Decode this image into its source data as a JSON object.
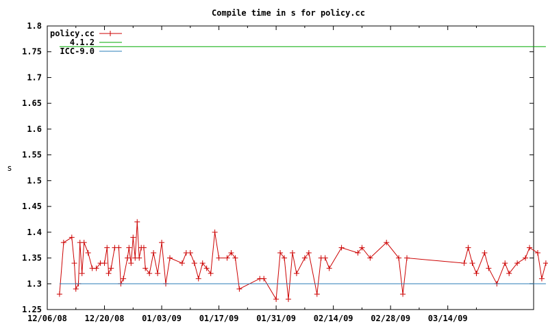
{
  "chart_data": {
    "type": "line",
    "title": "Compile time in s for policy.cc",
    "xlabel": "",
    "ylabel": "s",
    "ylim": [
      1.25,
      1.8
    ],
    "yticks": [
      "1.25",
      "1.3",
      "1.35",
      "1.4",
      "1.45",
      "1.5",
      "1.55",
      "1.6",
      "1.65",
      "1.7",
      "1.75",
      "1.8"
    ],
    "xlim": [
      "2008-12-06",
      "2009-04-04"
    ],
    "xticks": [
      {
        "date": "2008-12-06",
        "label": "12/06/08"
      },
      {
        "date": "2008-12-20",
        "label": "12/20/08"
      },
      {
        "date": "2009-01-03",
        "label": "01/03/09"
      },
      {
        "date": "2009-01-17",
        "label": "01/17/09"
      },
      {
        "date": "2009-01-31",
        "label": "01/31/09"
      },
      {
        "date": "2009-02-14",
        "label": "02/14/09"
      },
      {
        "date": "2009-02-28",
        "label": "02/28/09"
      },
      {
        "date": "2009-03-14",
        "label": "03/14/09"
      }
    ],
    "grid": false,
    "legend_position": "top-left",
    "series": [
      {
        "name": "policy.cc",
        "color": "#cc0000",
        "marker": "plus",
        "points": [
          [
            "2008-12-09T00:00",
            1.28
          ],
          [
            "2008-12-10T00:00",
            1.38
          ],
          [
            "2008-12-12T00:00",
            1.39
          ],
          [
            "2008-12-12T15:00",
            1.34
          ],
          [
            "2008-12-13T00:00",
            1.29
          ],
          [
            "2008-12-13T15:00",
            1.3
          ],
          [
            "2008-12-14T00:00",
            1.38
          ],
          [
            "2008-12-14T12:00",
            1.32
          ],
          [
            "2008-12-15T00:00",
            1.38
          ],
          [
            "2008-12-16T00:00",
            1.36
          ],
          [
            "2008-12-17T00:00",
            1.33
          ],
          [
            "2008-12-18T00:00",
            1.33
          ],
          [
            "2008-12-19T00:00",
            1.34
          ],
          [
            "2008-12-20T00:00",
            1.34
          ],
          [
            "2008-12-20T15:00",
            1.37
          ],
          [
            "2008-12-21T00:00",
            1.32
          ],
          [
            "2008-12-21T15:00",
            1.33
          ],
          [
            "2008-12-22T12:00",
            1.37
          ],
          [
            "2008-12-23T12:00",
            1.37
          ],
          [
            "2008-12-24T00:00",
            1.3
          ],
          [
            "2008-12-24T15:00",
            1.31
          ],
          [
            "2008-12-25T15:00",
            1.35
          ],
          [
            "2008-12-26T00:00",
            1.37
          ],
          [
            "2008-12-26T12:00",
            1.34
          ],
          [
            "2008-12-27T00:00",
            1.39
          ],
          [
            "2008-12-27T12:00",
            1.35
          ],
          [
            "2008-12-28T00:00",
            1.42
          ],
          [
            "2008-12-28T12:00",
            1.35
          ],
          [
            "2008-12-29T00:00",
            1.37
          ],
          [
            "2008-12-29T15:00",
            1.37
          ],
          [
            "2008-12-30T00:00",
            1.33
          ],
          [
            "2008-12-31T00:00",
            1.32
          ],
          [
            "2009-01-01T00:00",
            1.36
          ],
          [
            "2009-01-02T00:00",
            1.32
          ],
          [
            "2009-01-03T00:00",
            1.38
          ],
          [
            "2009-01-04T00:00",
            1.3
          ],
          [
            "2009-01-05T00:00",
            1.35
          ],
          [
            "2009-01-08T00:00",
            1.34
          ],
          [
            "2009-01-09T00:00",
            1.36
          ],
          [
            "2009-01-10T00:00",
            1.36
          ],
          [
            "2009-01-11T00:00",
            1.34
          ],
          [
            "2009-01-12T00:00",
            1.31
          ],
          [
            "2009-01-13T00:00",
            1.34
          ],
          [
            "2009-01-14T00:00",
            1.33
          ],
          [
            "2009-01-15T00:00",
            1.32
          ],
          [
            "2009-01-16T00:00",
            1.4
          ],
          [
            "2009-01-17T00:00",
            1.35
          ],
          [
            "2009-01-19T00:00",
            1.35
          ],
          [
            "2009-01-20T00:00",
            1.36
          ],
          [
            "2009-01-21T00:00",
            1.35
          ],
          [
            "2009-01-22T00:00",
            1.29
          ],
          [
            "2009-01-27T00:00",
            1.31
          ],
          [
            "2009-01-28T00:00",
            1.31
          ],
          [
            "2009-01-31T00:00",
            1.27
          ],
          [
            "2009-02-01T00:00",
            1.36
          ],
          [
            "2009-02-02T00:00",
            1.35
          ],
          [
            "2009-02-03T00:00",
            1.27
          ],
          [
            "2009-02-04T00:00",
            1.36
          ],
          [
            "2009-02-05T00:00",
            1.32
          ],
          [
            "2009-02-07T00:00",
            1.35
          ],
          [
            "2009-02-08T00:00",
            1.36
          ],
          [
            "2009-02-10T00:00",
            1.28
          ],
          [
            "2009-02-11T00:00",
            1.35
          ],
          [
            "2009-02-12T00:00",
            1.35
          ],
          [
            "2009-02-13T00:00",
            1.33
          ],
          [
            "2009-02-16T00:00",
            1.37
          ],
          [
            "2009-02-20T00:00",
            1.36
          ],
          [
            "2009-02-21T00:00",
            1.37
          ],
          [
            "2009-02-23T00:00",
            1.35
          ],
          [
            "2009-02-27T00:00",
            1.38
          ],
          [
            "2009-03-02T00:00",
            1.35
          ],
          [
            "2009-03-03T00:00",
            1.28
          ],
          [
            "2009-03-04T00:00",
            1.35
          ],
          [
            "2009-03-18T00:00",
            1.34
          ],
          [
            "2009-03-19T00:00",
            1.37
          ],
          [
            "2009-03-20T00:00",
            1.34
          ],
          [
            "2009-03-21T00:00",
            1.32
          ],
          [
            "2009-03-23T00:00",
            1.36
          ],
          [
            "2009-03-24T00:00",
            1.33
          ],
          [
            "2009-03-26T00:00",
            1.3
          ],
          [
            "2009-03-28T00:00",
            1.34
          ],
          [
            "2009-03-29T00:00",
            1.32
          ],
          [
            "2009-03-31T00:00",
            1.34
          ],
          [
            "2009-04-02T00:00",
            1.35
          ],
          [
            "2009-04-03T00:00",
            1.37
          ],
          [
            "2009-04-05T00:00",
            1.36
          ],
          [
            "2009-04-06T00:00",
            1.31
          ],
          [
            "2009-04-07T00:00",
            1.34
          ]
        ]
      },
      {
        "name": "4.1.2",
        "color": "#00aa00",
        "marker": "none",
        "points": [
          [
            "2008-12-09T00:00",
            1.76
          ],
          [
            "2009-04-07T00:00",
            1.76
          ]
        ]
      },
      {
        "name": "ICC-9.0",
        "color": "#2a7fb8",
        "marker": "none",
        "points": [
          [
            "2008-12-09T00:00",
            1.3
          ],
          [
            "2009-04-07T00:00",
            1.3
          ]
        ]
      }
    ]
  }
}
